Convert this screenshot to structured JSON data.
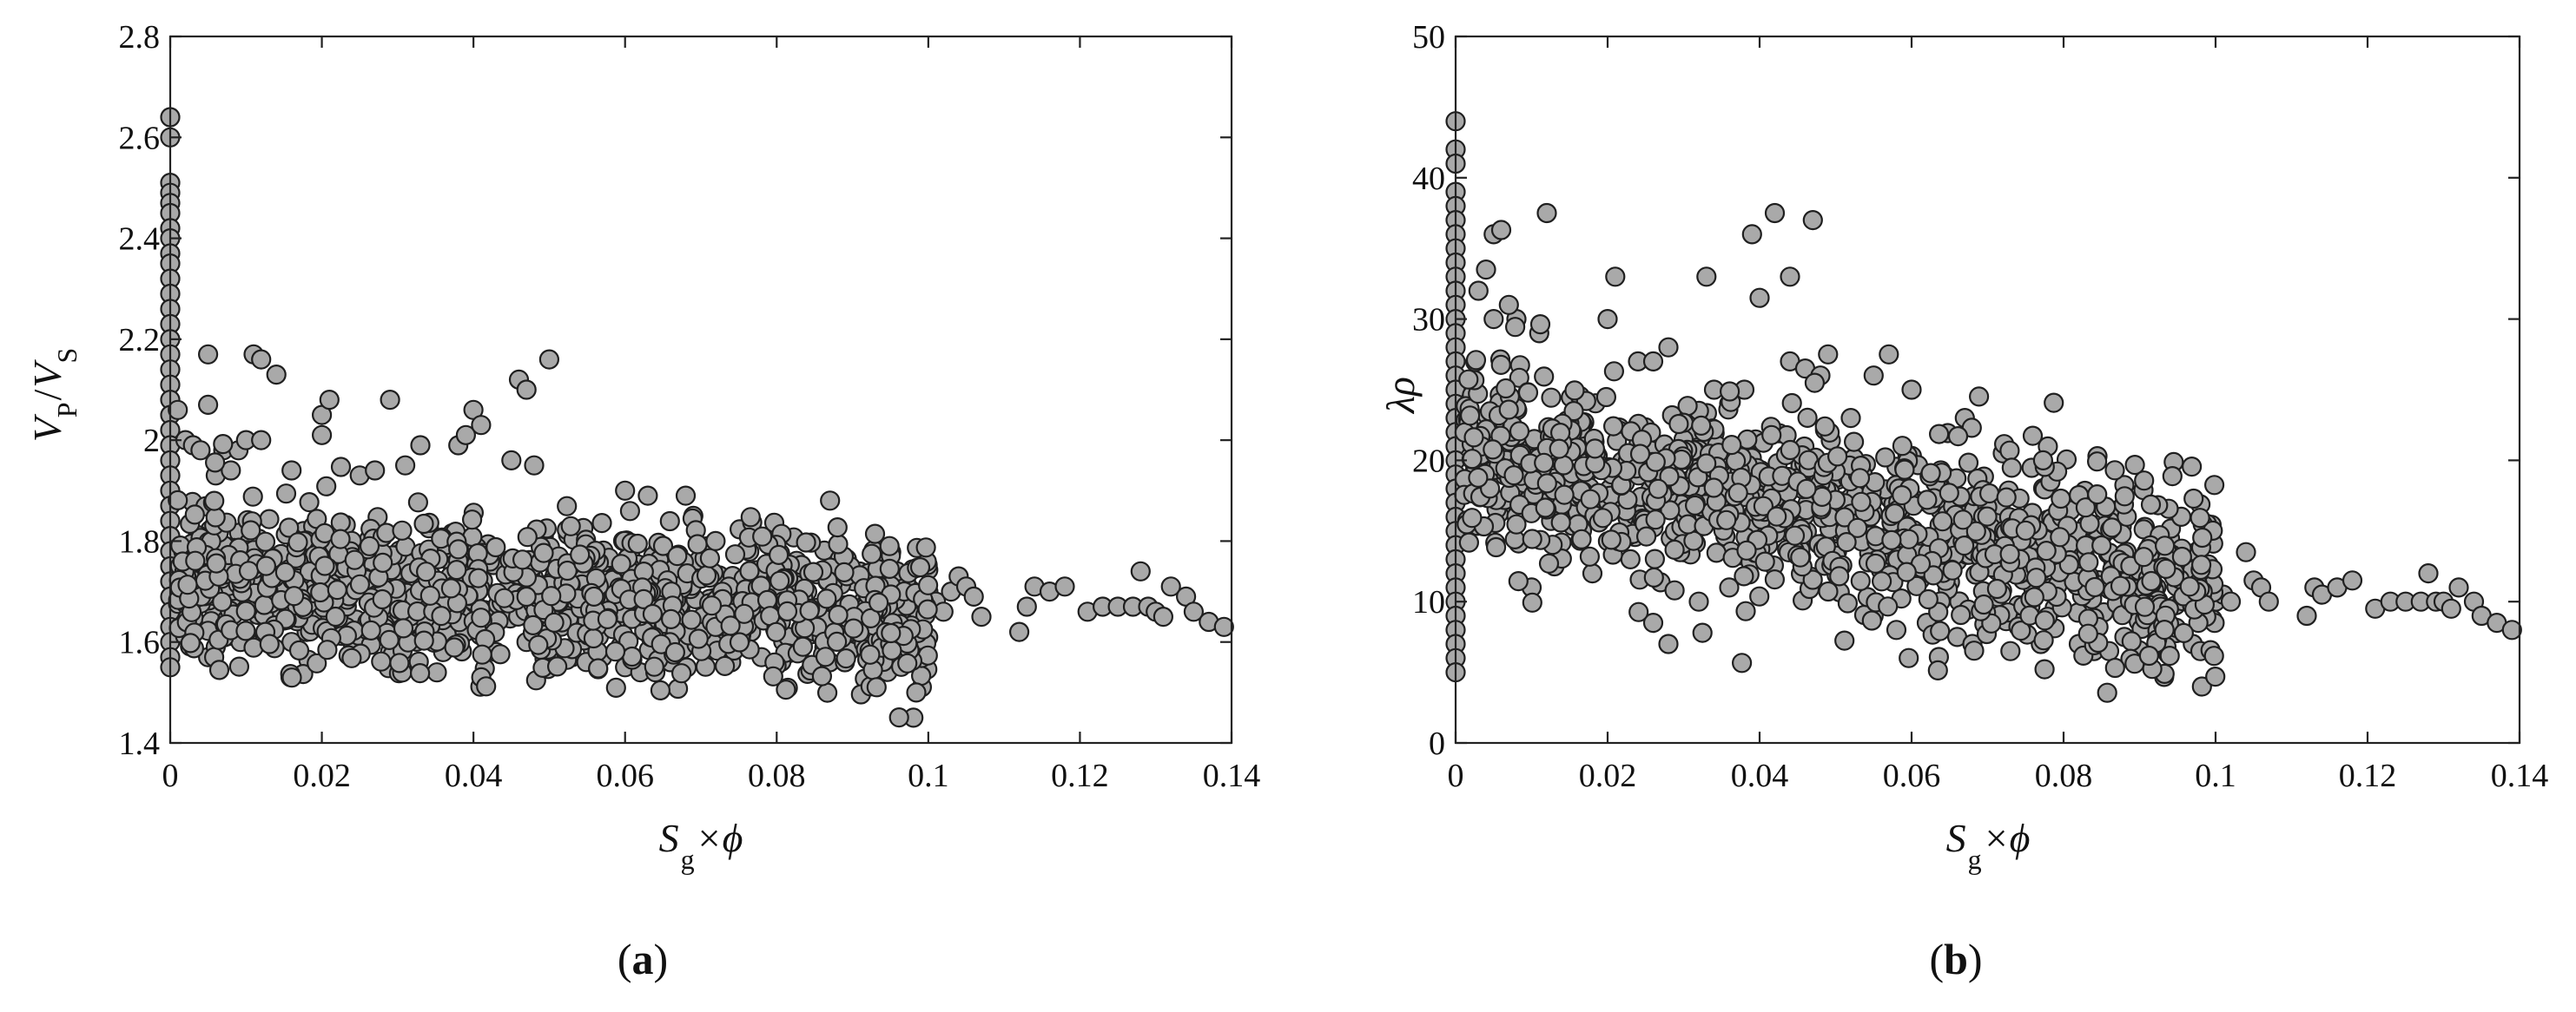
{
  "chart_data": [
    {
      "type": "scatter",
      "panel_label": {
        "open": "(",
        "letter": "a",
        "close": ")"
      },
      "xlabel": {
        "main": "S",
        "sub": "g",
        "op": "×",
        "var": "ϕ"
      },
      "ylabel": {
        "main1": "V",
        "sub1": "P",
        "slash": "/",
        "main2": "V",
        "sub2": "S"
      },
      "xlim": [
        0,
        0.14
      ],
      "ylim": [
        1.4,
        2.8
      ],
      "xticks": [
        0,
        0.02,
        0.04,
        0.06,
        0.08,
        0.1,
        0.12,
        0.14
      ],
      "xtick_labels": [
        "0",
        "0.02",
        "0.04",
        "0.06",
        "0.08",
        "0.1",
        "0.12",
        "0.14"
      ],
      "yticks": [
        1.4,
        1.6,
        1.8,
        2.0,
        2.2,
        2.4,
        2.6,
        2.8
      ],
      "ytick_labels": [
        "1.4",
        "1.6",
        "1.8",
        "2",
        "2.2",
        "2.4",
        "2.6",
        "2.8"
      ],
      "grid": false,
      "marker_color": "#a9a9a9",
      "marker_edge": "#1f1f1f",
      "series": [
        {
          "points": [
            [
              0,
              2.64
            ],
            [
              0,
              2.6
            ],
            [
              0,
              2.51
            ],
            [
              0,
              2.49
            ],
            [
              0,
              2.47
            ],
            [
              0,
              2.45
            ],
            [
              0,
              2.42
            ],
            [
              0,
              2.4
            ],
            [
              0,
              2.37
            ],
            [
              0,
              2.35
            ],
            [
              0,
              2.32
            ],
            [
              0,
              2.29
            ],
            [
              0,
              2.26
            ],
            [
              0,
              2.23
            ],
            [
              0,
              2.2
            ],
            [
              0,
              2.17
            ],
            [
              0,
              2.14
            ],
            [
              0,
              2.11
            ],
            [
              0,
              2.08
            ],
            [
              0,
              2.05
            ],
            [
              0,
              2.02
            ],
            [
              0,
              1.99
            ],
            [
              0,
              1.96
            ],
            [
              0,
              1.93
            ],
            [
              0,
              1.9
            ],
            [
              0,
              1.87
            ],
            [
              0,
              1.84
            ],
            [
              0,
              1.81
            ],
            [
              0,
              1.78
            ],
            [
              0,
              1.75
            ],
            [
              0,
              1.72
            ],
            [
              0,
              1.69
            ],
            [
              0,
              1.66
            ],
            [
              0,
              1.63
            ],
            [
              0,
              1.6
            ],
            [
              0,
              1.57
            ],
            [
              0,
              1.55
            ],
            [
              0.001,
              2.06
            ],
            [
              0.002,
              2.0
            ],
            [
              0.003,
              1.99
            ],
            [
              0.004,
              1.98
            ],
            [
              0.005,
              2.07
            ],
            [
              0.005,
              2.17
            ],
            [
              0.006,
              1.93
            ],
            [
              0.007,
              1.98
            ],
            [
              0.008,
              1.94
            ],
            [
              0.009,
              1.98
            ],
            [
              0.01,
              2.0
            ],
            [
              0.011,
              2.17
            ],
            [
              0.012,
              2.0
            ],
            [
              0.012,
              2.16
            ],
            [
              0.014,
              2.13
            ],
            [
              0.016,
              1.94
            ],
            [
              0.02,
              2.05
            ],
            [
              0.021,
              2.08
            ],
            [
              0.02,
              2.01
            ],
            [
              0.029,
              2.08
            ],
            [
              0.033,
              1.99
            ],
            [
              0.038,
              1.99
            ],
            [
              0.039,
              2.01
            ],
            [
              0.04,
              2.06
            ],
            [
              0.041,
              2.03
            ],
            [
              0.046,
              2.12
            ],
            [
              0.047,
              2.1
            ],
            [
              0.05,
              2.16
            ],
            [
              0.048,
              1.95
            ],
            [
              0.045,
              1.96
            ],
            [
              0.031,
              1.95
            ],
            [
              0.025,
              1.93
            ],
            [
              0.027,
              1.94
            ],
            [
              0.06,
              1.9
            ],
            [
              0.063,
              1.89
            ],
            [
              0.068,
              1.89
            ],
            [
              0.069,
              1.85
            ],
            [
              0.005,
              1.57
            ],
            [
              0.006,
              1.59
            ],
            [
              0.012,
              1.6
            ],
            [
              0.016,
              1.6
            ],
            [
              0.018,
              1.62
            ],
            [
              0.024,
              1.6
            ],
            [
              0.029,
              1.58
            ],
            [
              0.036,
              1.58
            ],
            [
              0.043,
              1.58
            ],
            [
              0.047,
              1.6
            ],
            [
              0.053,
              1.57
            ],
            [
              0.057,
              1.57
            ],
            [
              0.06,
              1.55
            ],
            [
              0.062,
              1.54
            ],
            [
              0.064,
              1.54
            ],
            [
              0.066,
              1.56
            ],
            [
              0.074,
              1.56
            ],
            [
              0.078,
              1.57
            ],
            [
              0.083,
              1.58
            ],
            [
              0.087,
              1.56
            ],
            [
              0.089,
              1.56
            ],
            [
              0.096,
              1.56
            ],
            [
              0.097,
              1.58
            ],
            [
              0.1,
              1.7
            ],
            [
              0.101,
              1.68
            ],
            [
              0.102,
              1.66
            ],
            [
              0.103,
              1.7
            ],
            [
              0.104,
              1.73
            ],
            [
              0.105,
              1.71
            ],
            [
              0.106,
              1.69
            ],
            [
              0.107,
              1.65
            ],
            [
              0.112,
              1.62
            ],
            [
              0.113,
              1.67
            ],
            [
              0.114,
              1.71
            ],
            [
              0.116,
              1.7
            ],
            [
              0.118,
              1.71
            ],
            [
              0.121,
              1.66
            ],
            [
              0.123,
              1.67
            ],
            [
              0.125,
              1.67
            ],
            [
              0.127,
              1.67
            ],
            [
              0.128,
              1.74
            ],
            [
              0.129,
              1.67
            ],
            [
              0.13,
              1.66
            ],
            [
              0.131,
              1.65
            ],
            [
              0.132,
              1.71
            ],
            [
              0.134,
              1.69
            ],
            [
              0.135,
              1.66
            ],
            [
              0.137,
              1.64
            ],
            [
              0.139,
              1.63
            ]
          ],
          "cloud": {
            "count": 1250,
            "seed": 11,
            "x_range": [
              0.001,
              0.1
            ],
            "mean_start": 1.73,
            "mean_end": 1.66,
            "spread": 0.075
          }
        }
      ]
    },
    {
      "type": "scatter",
      "panel_label": {
        "open": "(",
        "letter": "b",
        "close": ")"
      },
      "xlabel": {
        "main": "S",
        "sub": "g",
        "op": "×",
        "var": "ϕ"
      },
      "ylabel": {
        "text": "λρ"
      },
      "xlim": [
        0,
        0.14
      ],
      "ylim": [
        0,
        50
      ],
      "xticks": [
        0,
        0.02,
        0.04,
        0.06,
        0.08,
        0.1,
        0.12,
        0.14
      ],
      "xtick_labels": [
        "0",
        "0.02",
        "0.04",
        "0.06",
        "0.08",
        "0.1",
        "0.12",
        "0.14"
      ],
      "yticks": [
        0,
        10,
        20,
        30,
        40,
        50
      ],
      "ytick_labels": [
        "0",
        "10",
        "20",
        "30",
        "40",
        "50"
      ],
      "grid": false,
      "marker_color": "#a9a9a9",
      "marker_edge": "#1f1f1f",
      "series": [
        {
          "points": [
            [
              0,
              44
            ],
            [
              0,
              42
            ],
            [
              0,
              41
            ],
            [
              0,
              39
            ],
            [
              0,
              38
            ],
            [
              0,
              37
            ],
            [
              0,
              36
            ],
            [
              0,
              35
            ],
            [
              0,
              34
            ],
            [
              0,
              33
            ],
            [
              0,
              32
            ],
            [
              0,
              31
            ],
            [
              0,
              30
            ],
            [
              0,
              29
            ],
            [
              0,
              28
            ],
            [
              0,
              27
            ],
            [
              0,
              26
            ],
            [
              0,
              25
            ],
            [
              0,
              24
            ],
            [
              0,
              23
            ],
            [
              0,
              22
            ],
            [
              0,
              21
            ],
            [
              0,
              20
            ],
            [
              0,
              19
            ],
            [
              0,
              18
            ],
            [
              0,
              17
            ],
            [
              0,
              16
            ],
            [
              0,
              15
            ],
            [
              0,
              14
            ],
            [
              0,
              13
            ],
            [
              0,
              12
            ],
            [
              0,
              11
            ],
            [
              0,
              10
            ],
            [
              0,
              9
            ],
            [
              0,
              8
            ],
            [
              0,
              7
            ],
            [
              0,
              6
            ],
            [
              0,
              5
            ],
            [
              0.005,
              36
            ],
            [
              0.006,
              36.3
            ],
            [
              0.012,
              37.5
            ],
            [
              0.021,
              33
            ],
            [
              0.028,
              28
            ],
            [
              0.033,
              33
            ],
            [
              0.039,
              36
            ],
            [
              0.04,
              31.5
            ],
            [
              0.042,
              37.5
            ],
            [
              0.044,
              33
            ],
            [
              0.047,
              37
            ],
            [
              0.044,
              27
            ],
            [
              0.046,
              26.5
            ],
            [
              0.048,
              26
            ],
            [
              0.049,
              27.5
            ],
            [
              0.052,
              23
            ],
            [
              0.055,
              26
            ],
            [
              0.057,
              27.5
            ],
            [
              0.06,
              25
            ],
            [
              0.067,
              23
            ],
            [
              0.072,
              20.5
            ],
            [
              0.02,
              30
            ],
            [
              0.024,
              27
            ],
            [
              0.026,
              27
            ],
            [
              0.034,
              25
            ],
            [
              0.036,
              24
            ],
            [
              0.038,
              25
            ],
            [
              0.005,
              30
            ],
            [
              0.008,
              30
            ],
            [
              0.011,
              29
            ],
            [
              0.003,
              32
            ],
            [
              0.004,
              33.5
            ],
            [
              0.007,
              31
            ],
            [
              0.01,
              11
            ],
            [
              0.013,
              12.5
            ],
            [
              0.018,
              12
            ],
            [
              0.023,
              13
            ],
            [
              0.026,
              8.5
            ],
            [
              0.028,
              7
            ],
            [
              0.032,
              10
            ],
            [
              0.036,
              11
            ],
            [
              0.055,
              9
            ],
            [
              0.058,
              8
            ],
            [
              0.062,
              8.5
            ],
            [
              0.066,
              7.5
            ],
            [
              0.068,
              7
            ],
            [
              0.073,
              6.5
            ],
            [
              0.077,
              7
            ],
            [
              0.082,
              7
            ],
            [
              0.084,
              6.5
            ],
            [
              0.086,
              6.5
            ],
            [
              0.088,
              7.5
            ],
            [
              0.097,
              7
            ],
            [
              0.098,
              6.5
            ],
            [
              0.1,
              10
            ],
            [
              0.101,
              10.5
            ],
            [
              0.102,
              10
            ],
            [
              0.104,
              13.5
            ],
            [
              0.105,
              11.5
            ],
            [
              0.106,
              11
            ],
            [
              0.107,
              10
            ],
            [
              0.112,
              9
            ],
            [
              0.113,
              11
            ],
            [
              0.114,
              10.5
            ],
            [
              0.116,
              11
            ],
            [
              0.118,
              11.5
            ],
            [
              0.121,
              9.5
            ],
            [
              0.123,
              10
            ],
            [
              0.125,
              10
            ],
            [
              0.127,
              10
            ],
            [
              0.128,
              12
            ],
            [
              0.129,
              10
            ],
            [
              0.13,
              10
            ],
            [
              0.131,
              9.5
            ],
            [
              0.132,
              11
            ],
            [
              0.134,
              10
            ],
            [
              0.135,
              9
            ],
            [
              0.137,
              8.5
            ],
            [
              0.139,
              8
            ]
          ],
          "cloud": {
            "count": 1250,
            "seed": 23,
            "x_range": [
              0.001,
              0.1
            ],
            "mean_start": 21,
            "mean_end": 11,
            "spread": 3.2
          }
        }
      ]
    }
  ]
}
